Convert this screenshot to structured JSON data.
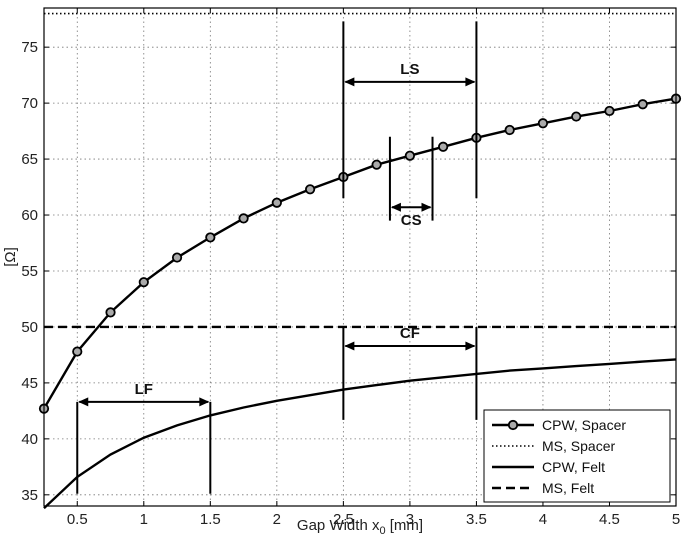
{
  "chart_data": {
    "type": "line",
    "xlabel": "Gap Width x",
    "xlabel_sub": "0",
    "xlabel_unit": " [mm]",
    "ylabel": "[Ω]",
    "xlim": [
      0.25,
      5
    ],
    "ylim": [
      34,
      78.5
    ],
    "xticks": [
      0.5,
      1,
      1.5,
      2,
      2.5,
      3,
      3.5,
      4,
      4.5,
      5
    ],
    "xtick_labels": [
      "0.5",
      "1",
      "1.5",
      "2",
      "2.5",
      "3",
      "3.5",
      "4",
      "4.5",
      "5"
    ],
    "yticks": [
      35,
      40,
      45,
      50,
      55,
      60,
      65,
      70,
      75
    ],
    "ytick_labels": [
      "35",
      "40",
      "45",
      "50",
      "55",
      "60",
      "65",
      "70",
      "75"
    ],
    "grid": true,
    "legend_position": "bottom-right",
    "series": [
      {
        "name": "CPW, Spacer",
        "style": "solid-circle-markers",
        "x": [
          0.25,
          0.5,
          0.75,
          1,
          1.25,
          1.5,
          1.75,
          2,
          2.25,
          2.5,
          2.75,
          3,
          3.25,
          3.5,
          3.75,
          4,
          4.25,
          4.5,
          4.75,
          5
        ],
        "y": [
          42.7,
          47.8,
          51.3,
          54.0,
          56.2,
          58.0,
          59.7,
          61.1,
          62.3,
          63.4,
          64.5,
          65.3,
          66.1,
          66.9,
          67.6,
          68.2,
          68.8,
          69.3,
          69.9,
          70.4
        ]
      },
      {
        "name": "MS, Spacer",
        "style": "dotted",
        "x": [
          0.25,
          5
        ],
        "y": [
          78,
          78
        ]
      },
      {
        "name": "CPW, Felt",
        "style": "solid",
        "x": [
          0.25,
          0.5,
          0.75,
          1,
          1.25,
          1.5,
          1.75,
          2,
          2.25,
          2.5,
          2.75,
          3,
          3.25,
          3.5,
          3.75,
          4,
          4.25,
          4.5,
          4.75,
          5
        ],
        "y": [
          33.8,
          36.6,
          38.6,
          40.1,
          41.2,
          42.1,
          42.8,
          43.4,
          43.9,
          44.4,
          44.8,
          45.2,
          45.5,
          45.8,
          46.1,
          46.3,
          46.5,
          46.7,
          46.9,
          47.1
        ]
      },
      {
        "name": "MS, Felt",
        "style": "dashed",
        "x": [
          0.25,
          5
        ],
        "y": [
          50,
          50
        ]
      }
    ],
    "annotations": [
      {
        "label": "LS",
        "x1": 2.5,
        "x2": 3.5,
        "y_arrow": 71.9,
        "bar_ylo": 61.5,
        "bar_yhi": 77.3,
        "label_pos": "above"
      },
      {
        "label": "CS",
        "x1": 2.85,
        "x2": 3.17,
        "y_arrow": 60.7,
        "bar_ylo": 59.5,
        "bar_yhi": 67.0,
        "label_pos": "below"
      },
      {
        "label": "CF",
        "x1": 2.5,
        "x2": 3.5,
        "y_arrow": 48.3,
        "bar_ylo": 41.7,
        "bar_yhi": 50.0,
        "label_pos": "above"
      },
      {
        "label": "LF",
        "x1": 0.5,
        "x2": 1.5,
        "y_arrow": 43.3,
        "bar_ylo": 35.1,
        "bar_yhi": 43.3,
        "label_pos": "above"
      }
    ]
  }
}
